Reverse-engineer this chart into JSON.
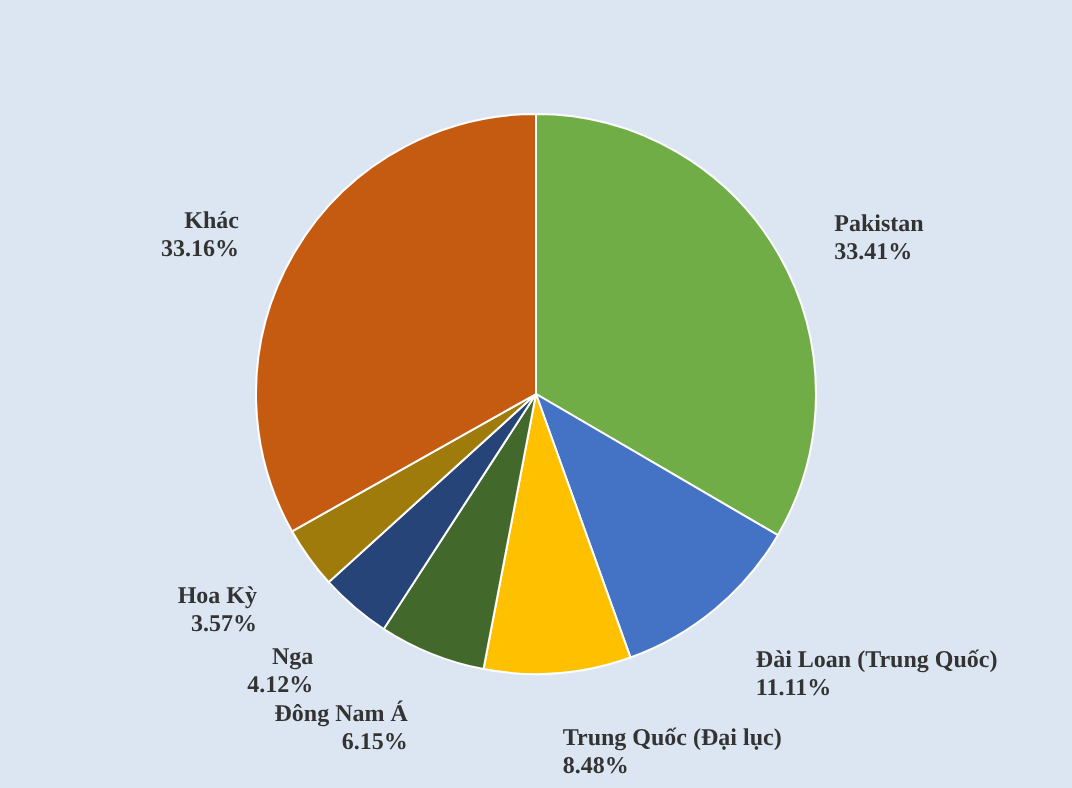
{
  "chart_data": {
    "type": "pie",
    "categories": [
      "Pakistan",
      "Đài Loan (Trung Quốc)",
      "Trung Quốc (Đại lục)",
      "Đông Nam Á",
      "Nga",
      "Hoa Kỳ",
      "Khác"
    ],
    "values": [
      33.41,
      11.11,
      8.48,
      6.15,
      4.12,
      3.57,
      33.16
    ],
    "value_labels": [
      "33.41%",
      "11.11%",
      "8.48%",
      "6.15%",
      "4.12%",
      "3.57%",
      "33.16%"
    ],
    "colors": [
      "#70ad47",
      "#4472c4",
      "#ffc000",
      "#43682b",
      "#264478",
      "#9e7b0a",
      "#c55a11"
    ],
    "legend": false
  }
}
